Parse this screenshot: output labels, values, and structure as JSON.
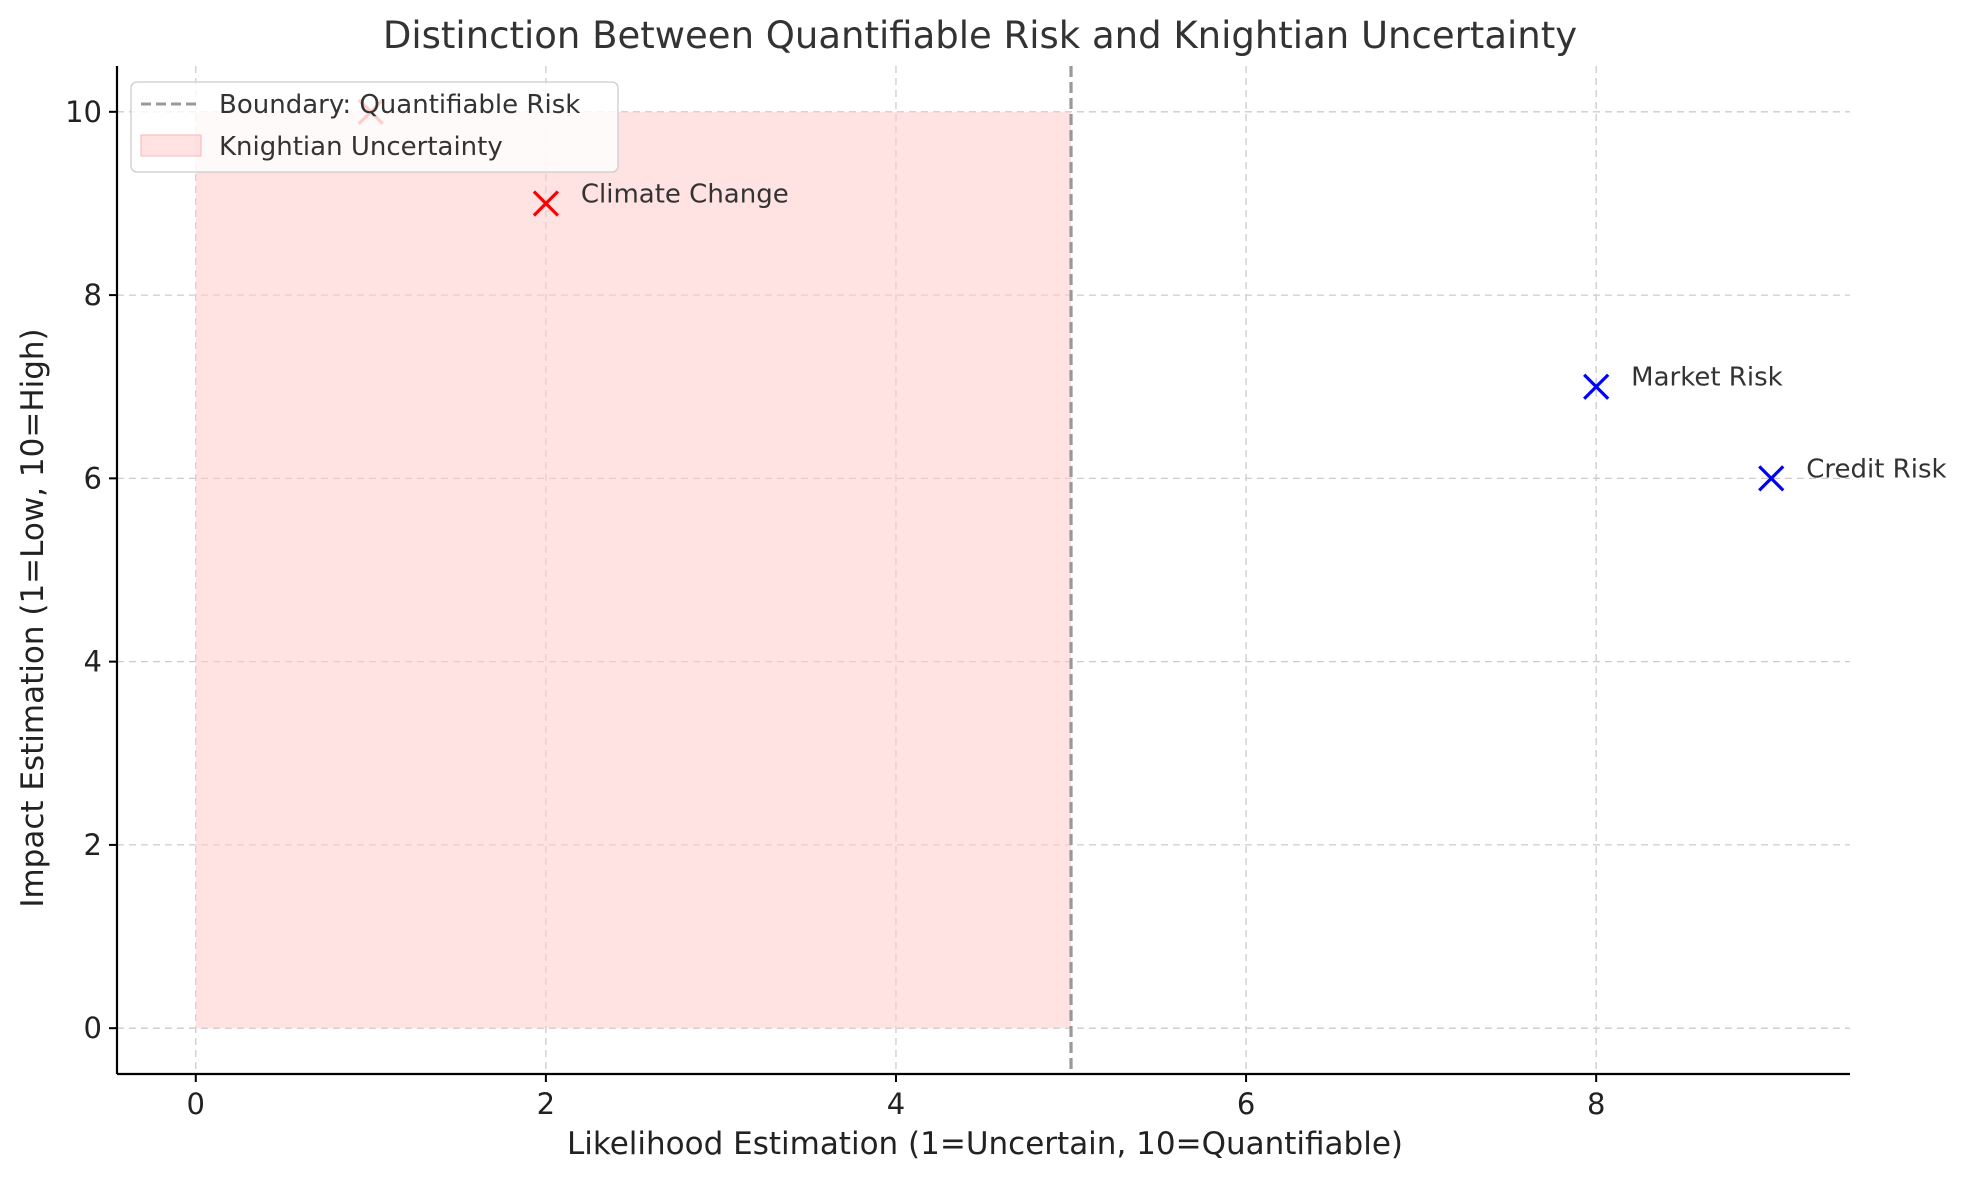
{
  "chart_data": {
    "type": "scatter",
    "title": "Distinction Between Quantifiable Risk and Knightian Uncertainty",
    "xlabel": "Likelihood Estimation (1=Uncertain, 10=Quantifiable)",
    "ylabel": "Impact Estimation (1=Low, 10=High)",
    "xlim": [
      -0.45,
      9.45
    ],
    "ylim": [
      -0.5,
      10.5
    ],
    "xticks": [
      0,
      2,
      4,
      6,
      8
    ],
    "yticks": [
      0,
      2,
      4,
      6,
      8,
      10
    ],
    "grid": true,
    "legend_position": "upper-left",
    "boundary": {
      "x": 5,
      "label": "Boundary: Quantifiable Risk",
      "color": "#999999"
    },
    "region": {
      "x": [
        0,
        5
      ],
      "y": [
        0,
        10
      ],
      "label": "Knightian Uncertainty",
      "color": "#ffcccc"
    },
    "points": [
      {
        "x": 1,
        "y": 10,
        "label": "",
        "color": "#ff0000"
      },
      {
        "x": 2,
        "y": 9,
        "label": "Climate Change",
        "color": "#ff0000"
      },
      {
        "x": 8,
        "y": 7,
        "label": "Market Risk",
        "color": "#0000ff"
      },
      {
        "x": 9,
        "y": 6,
        "label": "Credit Risk",
        "color": "#0000ff"
      }
    ]
  }
}
